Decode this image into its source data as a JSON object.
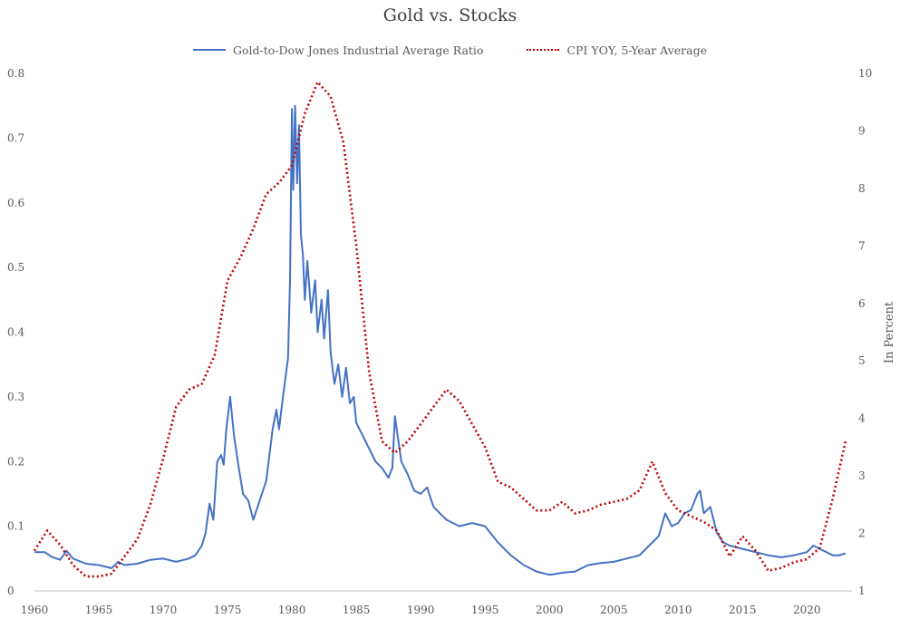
{
  "chart_data": {
    "type": "line",
    "title": "Gold vs. Stocks",
    "xlabel": "",
    "ylabel": "",
    "y2label": "In Percent",
    "xlim": [
      1960,
      2023.5
    ],
    "ylim": [
      0,
      0.8
    ],
    "y2lim": [
      1,
      10
    ],
    "x_ticks": [
      1960,
      1965,
      1970,
      1975,
      1980,
      1985,
      1990,
      1995,
      2000,
      2005,
      2010,
      2015,
      2020
    ],
    "y_ticks": [
      "0",
      "0.1",
      "0.2",
      "0.3",
      "0.4",
      "0.5",
      "0.6",
      "0.7",
      "0.8"
    ],
    "y2_ticks": [
      "1",
      "2",
      "3",
      "4",
      "5",
      "6",
      "7",
      "8",
      "9",
      "10"
    ],
    "grid": false,
    "legend_position": "top",
    "series": [
      {
        "name": "Gold-to-Dow Jones Industrial Average Ratio",
        "axis": "left",
        "style": "solid",
        "color": "#4472c4",
        "x": [
          1960,
          1960.8,
          1961.3,
          1962,
          1962.5,
          1963,
          1964,
          1965,
          1966,
          1966.5,
          1967,
          1968,
          1969,
          1970,
          1971,
          1972,
          1972.5,
          1973,
          1973.3,
          1973.6,
          1973.9,
          1974.2,
          1974.5,
          1974.7,
          1974.9,
          1975.2,
          1975.5,
          1975.8,
          1976.2,
          1976.6,
          1977,
          1977.5,
          1978,
          1978.5,
          1978.8,
          1979,
          1979.3,
          1979.5,
          1979.7,
          1979.85,
          1980,
          1980.1,
          1980.25,
          1980.4,
          1980.55,
          1980.7,
          1980.85,
          1981,
          1981.2,
          1981.5,
          1981.8,
          1982,
          1982.3,
          1982.5,
          1982.8,
          1983,
          1983.3,
          1983.6,
          1983.9,
          1984.2,
          1984.5,
          1984.8,
          1985,
          1985.5,
          1986,
          1986.5,
          1987,
          1987.5,
          1987.8,
          1988,
          1988.5,
          1989,
          1989.5,
          1990,
          1990.5,
          1991,
          1991.5,
          1992,
          1993,
          1994,
          1995,
          1996,
          1997,
          1998,
          1999,
          2000,
          2001,
          2002,
          2003,
          2004,
          2005,
          2006,
          2007,
          2008,
          2008.5,
          2009,
          2009.5,
          2010,
          2010.5,
          2011,
          2011.5,
          2011.7,
          2012,
          2012.5,
          2013,
          2013.5,
          2014,
          2015,
          2016,
          2017,
          2018,
          2019,
          2020,
          2020.5,
          2021,
          2022,
          2022.5,
          2023
        ],
        "values": [
          0.06,
          0.06,
          0.053,
          0.048,
          0.062,
          0.05,
          0.042,
          0.04,
          0.035,
          0.045,
          0.04,
          0.042,
          0.048,
          0.05,
          0.045,
          0.05,
          0.055,
          0.07,
          0.09,
          0.135,
          0.11,
          0.2,
          0.21,
          0.195,
          0.25,
          0.3,
          0.24,
          0.2,
          0.15,
          0.14,
          0.11,
          0.14,
          0.17,
          0.25,
          0.28,
          0.25,
          0.3,
          0.33,
          0.36,
          0.48,
          0.745,
          0.62,
          0.75,
          0.63,
          0.72,
          0.55,
          0.52,
          0.45,
          0.51,
          0.43,
          0.48,
          0.4,
          0.45,
          0.39,
          0.465,
          0.37,
          0.32,
          0.35,
          0.3,
          0.345,
          0.29,
          0.3,
          0.26,
          0.24,
          0.22,
          0.2,
          0.19,
          0.175,
          0.19,
          0.27,
          0.2,
          0.18,
          0.155,
          0.15,
          0.16,
          0.13,
          0.12,
          0.11,
          0.1,
          0.105,
          0.1,
          0.075,
          0.055,
          0.04,
          0.03,
          0.025,
          0.028,
          0.03,
          0.04,
          0.043,
          0.045,
          0.05,
          0.055,
          0.075,
          0.085,
          0.12,
          0.1,
          0.105,
          0.12,
          0.125,
          0.15,
          0.155,
          0.12,
          0.13,
          0.09,
          0.075,
          0.07,
          0.065,
          0.06,
          0.055,
          0.052,
          0.055,
          0.06,
          0.07,
          0.065,
          0.055,
          0.055,
          0.058
        ]
      },
      {
        "name": "CPI YOY, 5-Year Average",
        "axis": "right",
        "style": "dotted",
        "color": "#c00000",
        "x": [
          1960,
          1961,
          1962,
          1963,
          1964,
          1965,
          1966,
          1967,
          1968,
          1969,
          1970,
          1971,
          1972,
          1973,
          1974,
          1975,
          1976,
          1977,
          1978,
          1979,
          1980,
          1981,
          1982,
          1983,
          1984,
          1985,
          1986,
          1987,
          1988,
          1989,
          1990,
          1991,
          1992,
          1993,
          1994,
          1995,
          1996,
          1997,
          1998,
          1999,
          2000,
          2001,
          2002,
          2003,
          2004,
          2005,
          2006,
          2007,
          2008,
          2009,
          2010,
          2011,
          2012,
          2013,
          2014,
          2015,
          2016,
          2017,
          2018,
          2019,
          2020,
          2021,
          2022,
          2023
        ],
        "values": [
          1.7,
          2.05,
          1.8,
          1.45,
          1.25,
          1.25,
          1.3,
          1.6,
          1.9,
          2.5,
          3.3,
          4.2,
          4.5,
          4.6,
          5.1,
          6.4,
          6.8,
          7.3,
          7.9,
          8.1,
          8.4,
          9.3,
          9.85,
          9.6,
          8.8,
          7.0,
          4.8,
          3.6,
          3.4,
          3.6,
          3.9,
          4.2,
          4.5,
          4.3,
          3.9,
          3.5,
          2.9,
          2.8,
          2.6,
          2.4,
          2.4,
          2.55,
          2.35,
          2.4,
          2.5,
          2.55,
          2.6,
          2.75,
          3.25,
          2.7,
          2.4,
          2.3,
          2.2,
          2.05,
          1.6,
          1.95,
          1.7,
          1.35,
          1.4,
          1.5,
          1.55,
          1.75,
          2.6,
          3.6
        ]
      }
    ]
  }
}
